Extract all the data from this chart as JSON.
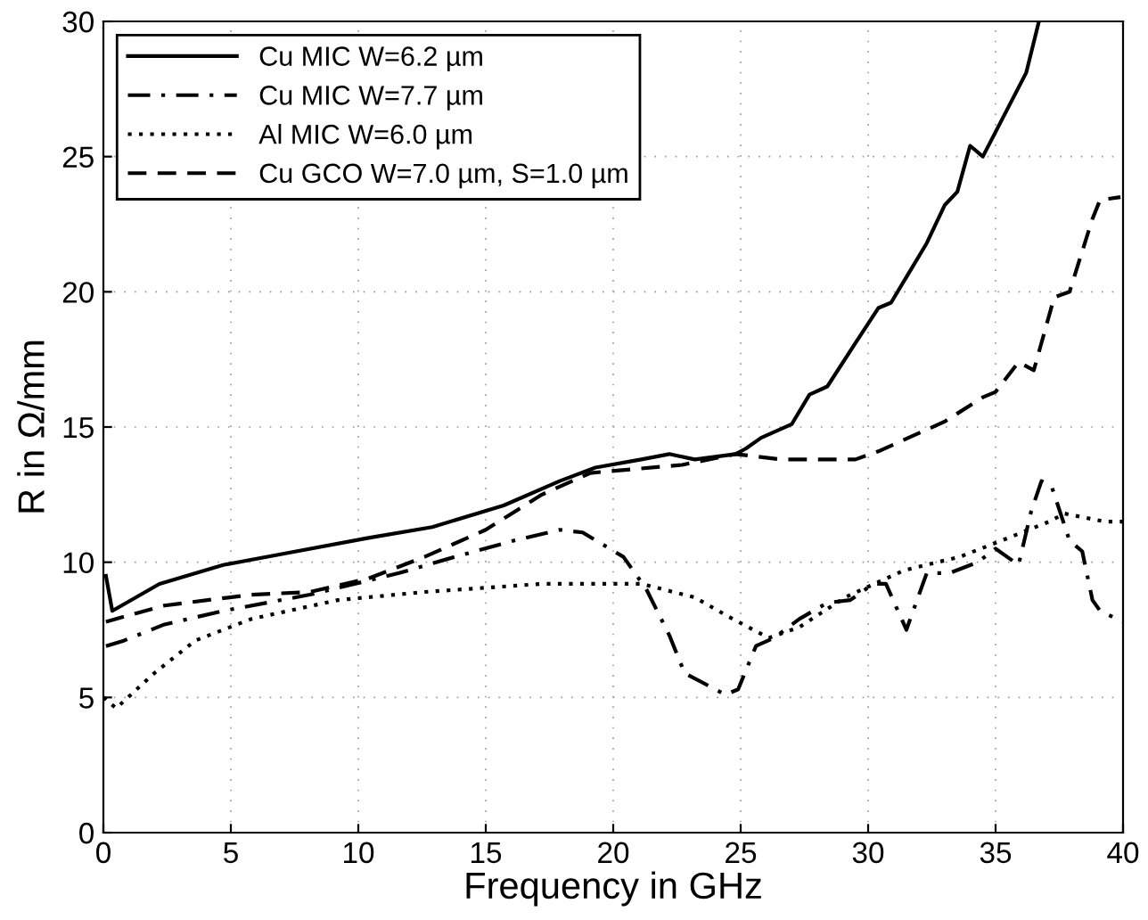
{
  "chart_data": {
    "type": "line",
    "xlabel": "Frequency in GHz",
    "ylabel": "R in Ω/mm",
    "xlim": [
      0,
      40
    ],
    "ylim": [
      0,
      30
    ],
    "xticks": [
      0,
      5,
      10,
      15,
      20,
      25,
      30,
      35,
      40
    ],
    "yticks": [
      0,
      5,
      10,
      15,
      20,
      25,
      30
    ],
    "grid": true,
    "legend": "top left",
    "series": [
      {
        "name": "Cu MIC W=6.2 µm",
        "color": "#000000",
        "line_style": "solid",
        "x": [
          0.1,
          0.35,
          2.2,
          4.7,
          7.0,
          10.4,
          12.9,
          15.7,
          17.9,
          19.3,
          21.1,
          22.2,
          23.2,
          24.8,
          25.2,
          25.8,
          27.0,
          27.7,
          28.4,
          29.5,
          30.4,
          30.9,
          31.6,
          32.3,
          33.0,
          33.5,
          34.0,
          34.5,
          36.2,
          36.7
        ],
        "values": [
          9.5,
          8.2,
          9.2,
          9.9,
          10.3,
          10.9,
          11.3,
          12.1,
          13.0,
          13.5,
          13.8,
          14.0,
          13.8,
          14.0,
          14.2,
          14.6,
          15.1,
          16.2,
          16.5,
          18.1,
          19.4,
          19.6,
          20.7,
          21.8,
          23.2,
          23.7,
          25.4,
          25.0,
          28.1,
          30.0
        ]
      },
      {
        "name": "Cu MIC W=7.7 µm",
        "color": "#000000",
        "line_style": "dashdot",
        "x": [
          0.1,
          0.8,
          2.4,
          4.7,
          8.1,
          11.6,
          13.8,
          16.1,
          17.9,
          18.8,
          20.4,
          21.3,
          22.2,
          22.8,
          24.4,
          24.9,
          25.6,
          26.3,
          27.3,
          28.4,
          29.3,
          30.2,
          30.7,
          31.5,
          32.3,
          33.2,
          34.3,
          35.0,
          35.9,
          36.4,
          36.8,
          37.2,
          37.9,
          38.4,
          38.8,
          39.1,
          40.0
        ],
        "values": [
          6.9,
          7.1,
          7.7,
          8.2,
          8.8,
          9.6,
          10.2,
          10.8,
          11.2,
          11.1,
          10.2,
          9.0,
          7.3,
          5.9,
          5.1,
          5.3,
          6.9,
          7.2,
          7.9,
          8.5,
          8.6,
          9.2,
          9.2,
          7.5,
          9.6,
          9.6,
          10.0,
          10.5,
          9.9,
          11.9,
          13.0,
          12.8,
          10.8,
          10.4,
          8.6,
          8.2,
          7.8
        ]
      },
      {
        "name": "Al MIC W=6.0 µm",
        "color": "#000000",
        "line_style": "dotted",
        "x": [
          0.0,
          0.5,
          2.0,
          3.6,
          5.8,
          9.2,
          12.6,
          17.2,
          21.1,
          23.2,
          24.5,
          26.1,
          27.3,
          29.1,
          31.4,
          33.6,
          35.5,
          37.1,
          37.7,
          39.3,
          40.0
        ],
        "values": [
          5.0,
          4.6,
          5.9,
          7.1,
          7.9,
          8.6,
          8.9,
          9.2,
          9.2,
          8.7,
          8.0,
          7.2,
          7.6,
          8.7,
          9.7,
          10.2,
          10.9,
          11.5,
          11.8,
          11.5,
          11.5
        ]
      },
      {
        "name": "Cu GCO W=7.0 µm, S=1.0 µm",
        "color": "#000000",
        "line_style": "dashed",
        "x": [
          0.1,
          2.4,
          5.8,
          8.1,
          10.4,
          12.6,
          15.0,
          17.2,
          19.1,
          22.7,
          24.8,
          26.6,
          29.5,
          30.4,
          33.0,
          34.5,
          35.0,
          35.9,
          36.5,
          37.3,
          37.9,
          38.8,
          39.1,
          39.9
        ],
        "values": [
          7.8,
          8.4,
          8.8,
          8.9,
          9.4,
          10.2,
          11.2,
          12.5,
          13.3,
          13.6,
          14.0,
          13.8,
          13.8,
          14.1,
          15.2,
          16.1,
          16.3,
          17.4,
          17.1,
          19.8,
          20.0,
          22.7,
          23.4,
          23.5
        ]
      }
    ]
  }
}
